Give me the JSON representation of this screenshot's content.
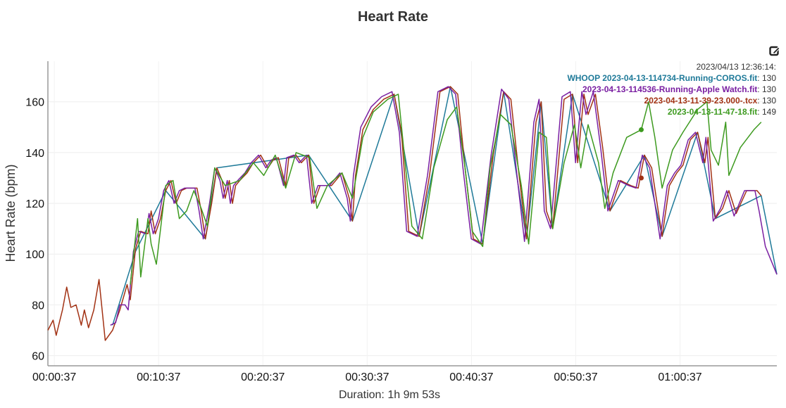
{
  "chart_data": {
    "type": "line",
    "title": "Heart Rate",
    "ylabel": "Heart Rate (bpm)",
    "xlabel": "Duration: 1h 9m 53s",
    "xlim_minutes": [
      0,
      69.9
    ],
    "ylim": [
      56,
      176
    ],
    "yticks": [
      60,
      80,
      100,
      120,
      140,
      160
    ],
    "xticks": [
      {
        "min": 0.617,
        "label": "00:00:37"
      },
      {
        "min": 10.617,
        "label": "00:10:37"
      },
      {
        "min": 20.617,
        "label": "00:20:37"
      },
      {
        "min": 30.617,
        "label": "00:30:37"
      },
      {
        "min": 40.617,
        "label": "00:40:37"
      },
      {
        "min": 50.617,
        "label": "00:50:37"
      },
      {
        "min": 60.617,
        "label": "01:00:37"
      }
    ],
    "tooltip": {
      "time": "2023/04/13 12:36:14:",
      "cursor_min": 56.9,
      "entries": [
        {
          "name": "WHOOP 2023-04-13-114734-Running-COROS.fit",
          "value": "130",
          "color": "#1f7a99"
        },
        {
          "name": "2023-04-13-114536-Running-Apple Watch.fit",
          "value": "130",
          "color": "#7a1fa2"
        },
        {
          "name": "2023-04-13-11-39-23.000-.tcx",
          "value": "130",
          "color": "#a23214"
        },
        {
          "name": "2023-04-13-11-47-18.fit",
          "value": "149",
          "color": "#3d9a1f"
        }
      ]
    },
    "series": [
      {
        "name": "WHOOP 2023-04-13-114734-Running-COROS.fit",
        "color": "#1f7a99",
        "points": [
          [
            6.2,
            72
          ],
          [
            8.4,
            101
          ],
          [
            11.3,
            125
          ],
          [
            15.1,
            106
          ],
          [
            16.2,
            134
          ],
          [
            25.0,
            139
          ],
          [
            29.2,
            113
          ],
          [
            33.2,
            163
          ],
          [
            35.6,
            107
          ],
          [
            38.6,
            166
          ],
          [
            41.7,
            104
          ],
          [
            43.7,
            164
          ],
          [
            45.9,
            106
          ],
          [
            47.3,
            160
          ],
          [
            48.4,
            110
          ],
          [
            50.3,
            163
          ],
          [
            53.9,
            117
          ],
          [
            57.2,
            139
          ],
          [
            58.9,
            107
          ],
          [
            62.3,
            148
          ],
          [
            64.0,
            114
          ],
          [
            68.4,
            123
          ],
          [
            69.9,
            92
          ]
        ]
      },
      {
        "name": "2023-04-13-114536-Running-Apple Watch.fit",
        "color": "#7a1fa2",
        "points": [
          [
            6.0,
            72
          ],
          [
            6.5,
            73
          ],
          [
            6.9,
            80
          ],
          [
            7.4,
            80
          ],
          [
            7.7,
            78
          ],
          [
            8.2,
            101
          ],
          [
            8.7,
            109
          ],
          [
            9.4,
            108
          ],
          [
            9.7,
            116
          ],
          [
            10.1,
            108
          ],
          [
            10.6,
            114
          ],
          [
            11.1,
            125
          ],
          [
            11.6,
            129
          ],
          [
            12.1,
            120
          ],
          [
            12.6,
            125
          ],
          [
            13.1,
            126
          ],
          [
            14.1,
            126
          ],
          [
            14.5,
            117
          ],
          [
            14.9,
            106
          ],
          [
            15.5,
            120
          ],
          [
            16.0,
            134
          ],
          [
            16.5,
            129
          ],
          [
            16.8,
            122
          ],
          [
            17.2,
            129
          ],
          [
            17.5,
            120
          ],
          [
            17.8,
            127
          ],
          [
            18.2,
            129
          ],
          [
            18.9,
            132
          ],
          [
            19.5,
            136
          ],
          [
            20.2,
            139
          ],
          [
            20.9,
            134
          ],
          [
            21.4,
            137
          ],
          [
            21.9,
            138
          ],
          [
            22.6,
            127
          ],
          [
            22.9,
            138
          ],
          [
            23.6,
            139
          ],
          [
            24.1,
            136
          ],
          [
            24.8,
            139
          ],
          [
            25.3,
            120
          ],
          [
            25.9,
            127
          ],
          [
            27.0,
            127
          ],
          [
            28.0,
            132
          ],
          [
            28.7,
            122
          ],
          [
            29.0,
            113
          ],
          [
            29.3,
            131
          ],
          [
            30.0,
            150
          ],
          [
            31.0,
            158
          ],
          [
            32.0,
            162
          ],
          [
            33.0,
            164
          ],
          [
            33.7,
            148
          ],
          [
            34.4,
            109
          ],
          [
            35.4,
            107
          ],
          [
            36.4,
            131
          ],
          [
            37.4,
            164
          ],
          [
            38.4,
            166
          ],
          [
            39.1,
            163
          ],
          [
            39.8,
            134
          ],
          [
            40.6,
            106
          ],
          [
            41.5,
            104
          ],
          [
            42.5,
            139
          ],
          [
            43.5,
            165
          ],
          [
            44.2,
            161
          ],
          [
            44.9,
            134
          ],
          [
            45.7,
            105
          ],
          [
            46.6,
            152
          ],
          [
            47.1,
            161
          ],
          [
            47.6,
            117
          ],
          [
            48.2,
            110
          ],
          [
            49.3,
            162
          ],
          [
            50.1,
            164
          ],
          [
            50.6,
            136
          ],
          [
            51.2,
            164
          ],
          [
            51.6,
            155
          ],
          [
            52.3,
            164
          ],
          [
            53.0,
            142
          ],
          [
            53.7,
            117
          ],
          [
            54.7,
            129
          ],
          [
            55.7,
            127
          ],
          [
            56.4,
            126
          ],
          [
            57.0,
            139
          ],
          [
            57.7,
            134
          ],
          [
            58.7,
            106
          ],
          [
            59.4,
            127
          ],
          [
            60.1,
            132
          ],
          [
            60.7,
            135
          ],
          [
            61.4,
            145
          ],
          [
            62.1,
            148
          ],
          [
            62.8,
            136
          ],
          [
            63.1,
            146
          ],
          [
            63.8,
            113
          ],
          [
            64.5,
            118
          ],
          [
            65.1,
            125
          ],
          [
            65.8,
            115
          ],
          [
            66.8,
            125
          ],
          [
            67.8,
            125
          ],
          [
            68.2,
            117
          ],
          [
            68.8,
            103
          ],
          [
            69.2,
            99
          ],
          [
            69.9,
            92
          ]
        ]
      },
      {
        "name": "2023-04-13-11-39-23.000-.tcx",
        "color": "#a23214",
        "points": [
          [
            0.0,
            70
          ],
          [
            0.5,
            74
          ],
          [
            0.8,
            68
          ],
          [
            1.4,
            78
          ],
          [
            1.8,
            87
          ],
          [
            2.2,
            79
          ],
          [
            2.7,
            80
          ],
          [
            3.2,
            72
          ],
          [
            3.5,
            78
          ],
          [
            3.9,
            71
          ],
          [
            4.4,
            78
          ],
          [
            4.9,
            90
          ],
          [
            5.2,
            78
          ],
          [
            5.5,
            66
          ],
          [
            6.2,
            70
          ],
          [
            6.9,
            78
          ],
          [
            7.6,
            88
          ],
          [
            7.9,
            82
          ],
          [
            8.4,
            102
          ],
          [
            8.9,
            109
          ],
          [
            9.6,
            108
          ],
          [
            9.9,
            117
          ],
          [
            10.3,
            108
          ],
          [
            10.8,
            114
          ],
          [
            11.3,
            125
          ],
          [
            11.8,
            129
          ],
          [
            12.3,
            120
          ],
          [
            12.8,
            125
          ],
          [
            13.3,
            126
          ],
          [
            14.3,
            126
          ],
          [
            14.7,
            117
          ],
          [
            15.1,
            106
          ],
          [
            15.7,
            120
          ],
          [
            16.2,
            134
          ],
          [
            16.7,
            129
          ],
          [
            17.0,
            122
          ],
          [
            17.4,
            129
          ],
          [
            17.7,
            120
          ],
          [
            18.0,
            127
          ],
          [
            18.4,
            129
          ],
          [
            19.1,
            132
          ],
          [
            19.7,
            136
          ],
          [
            20.4,
            139
          ],
          [
            21.1,
            134
          ],
          [
            21.6,
            137
          ],
          [
            22.1,
            138
          ],
          [
            22.8,
            127
          ],
          [
            23.1,
            138
          ],
          [
            23.8,
            139
          ],
          [
            24.3,
            136
          ],
          [
            25.0,
            139
          ],
          [
            25.5,
            120
          ],
          [
            26.1,
            127
          ],
          [
            27.2,
            127
          ],
          [
            28.2,
            132
          ],
          [
            28.9,
            122
          ],
          [
            29.2,
            113
          ],
          [
            29.5,
            131
          ],
          [
            30.2,
            149
          ],
          [
            31.2,
            157
          ],
          [
            32.2,
            161
          ],
          [
            33.2,
            163
          ],
          [
            33.9,
            148
          ],
          [
            34.6,
            109
          ],
          [
            35.6,
            107
          ],
          [
            36.6,
            131
          ],
          [
            37.6,
            164
          ],
          [
            38.6,
            166
          ],
          [
            39.3,
            163
          ],
          [
            40.0,
            134
          ],
          [
            40.8,
            106
          ],
          [
            41.7,
            104
          ],
          [
            42.7,
            139
          ],
          [
            43.7,
            164
          ],
          [
            44.4,
            161
          ],
          [
            45.1,
            134
          ],
          [
            45.9,
            106
          ],
          [
            46.8,
            152
          ],
          [
            47.3,
            160
          ],
          [
            47.8,
            117
          ],
          [
            48.4,
            110
          ],
          [
            49.5,
            161
          ],
          [
            50.3,
            163
          ],
          [
            50.8,
            136
          ],
          [
            51.4,
            163
          ],
          [
            51.8,
            155
          ],
          [
            52.5,
            163
          ],
          [
            53.2,
            142
          ],
          [
            53.9,
            117
          ],
          [
            54.9,
            129
          ],
          [
            55.9,
            127
          ],
          [
            56.6,
            126
          ],
          [
            57.2,
            139
          ],
          [
            57.9,
            134
          ],
          [
            58.9,
            107
          ],
          [
            59.6,
            127
          ],
          [
            60.3,
            132
          ],
          [
            60.9,
            135
          ],
          [
            61.6,
            145
          ],
          [
            62.3,
            148
          ],
          [
            63.0,
            136
          ],
          [
            63.3,
            146
          ],
          [
            64.0,
            114
          ],
          [
            64.7,
            118
          ],
          [
            65.3,
            125
          ],
          [
            66.0,
            116
          ],
          [
            67.0,
            125
          ],
          [
            68.0,
            125
          ],
          [
            68.4,
            123
          ]
        ]
      },
      {
        "name": "2023-04-13-11-47-18.fit",
        "color": "#3d9a1f",
        "points": [
          [
            7.9,
            88
          ],
          [
            8.6,
            114
          ],
          [
            8.9,
            91
          ],
          [
            9.6,
            114
          ],
          [
            9.9,
            104
          ],
          [
            10.4,
            96
          ],
          [
            11.3,
            127
          ],
          [
            12.0,
            129
          ],
          [
            12.6,
            114
          ],
          [
            13.3,
            117
          ],
          [
            14.0,
            125
          ],
          [
            14.7,
            118
          ],
          [
            15.3,
            111
          ],
          [
            16.0,
            134
          ],
          [
            17.0,
            127
          ],
          [
            18.4,
            129
          ],
          [
            19.7,
            136
          ],
          [
            20.7,
            131
          ],
          [
            21.8,
            139
          ],
          [
            22.8,
            126
          ],
          [
            23.8,
            140
          ],
          [
            25.1,
            138
          ],
          [
            25.8,
            118
          ],
          [
            26.8,
            127
          ],
          [
            28.2,
            132
          ],
          [
            29.2,
            122
          ],
          [
            30.2,
            146
          ],
          [
            31.2,
            156
          ],
          [
            32.6,
            161
          ],
          [
            33.6,
            163
          ],
          [
            34.3,
            134
          ],
          [
            34.9,
            111
          ],
          [
            35.9,
            106
          ],
          [
            37.0,
            134
          ],
          [
            38.3,
            153
          ],
          [
            39.2,
            158
          ],
          [
            40.0,
            134
          ],
          [
            40.7,
            109
          ],
          [
            41.7,
            103
          ],
          [
            42.4,
            134
          ],
          [
            43.4,
            155
          ],
          [
            44.4,
            151
          ],
          [
            45.4,
            127
          ],
          [
            46.1,
            104
          ],
          [
            47.1,
            148
          ],
          [
            47.8,
            146
          ],
          [
            48.4,
            110
          ],
          [
            49.5,
            136
          ],
          [
            50.5,
            151
          ],
          [
            51.1,
            134
          ],
          [
            51.8,
            151
          ],
          [
            52.8,
            136
          ],
          [
            53.4,
            118
          ],
          [
            54.2,
            132
          ],
          [
            55.5,
            146
          ],
          [
            56.9,
            149
          ],
          [
            57.6,
            160
          ],
          [
            58.2,
            146
          ],
          [
            58.9,
            126
          ],
          [
            59.9,
            141
          ],
          [
            60.9,
            148
          ],
          [
            62.3,
            157
          ],
          [
            63.2,
            160
          ],
          [
            63.6,
            141
          ],
          [
            64.3,
            135
          ],
          [
            65.0,
            152
          ],
          [
            65.3,
            131
          ],
          [
            66.4,
            142
          ],
          [
            67.7,
            149
          ],
          [
            68.4,
            152
          ]
        ]
      }
    ]
  }
}
